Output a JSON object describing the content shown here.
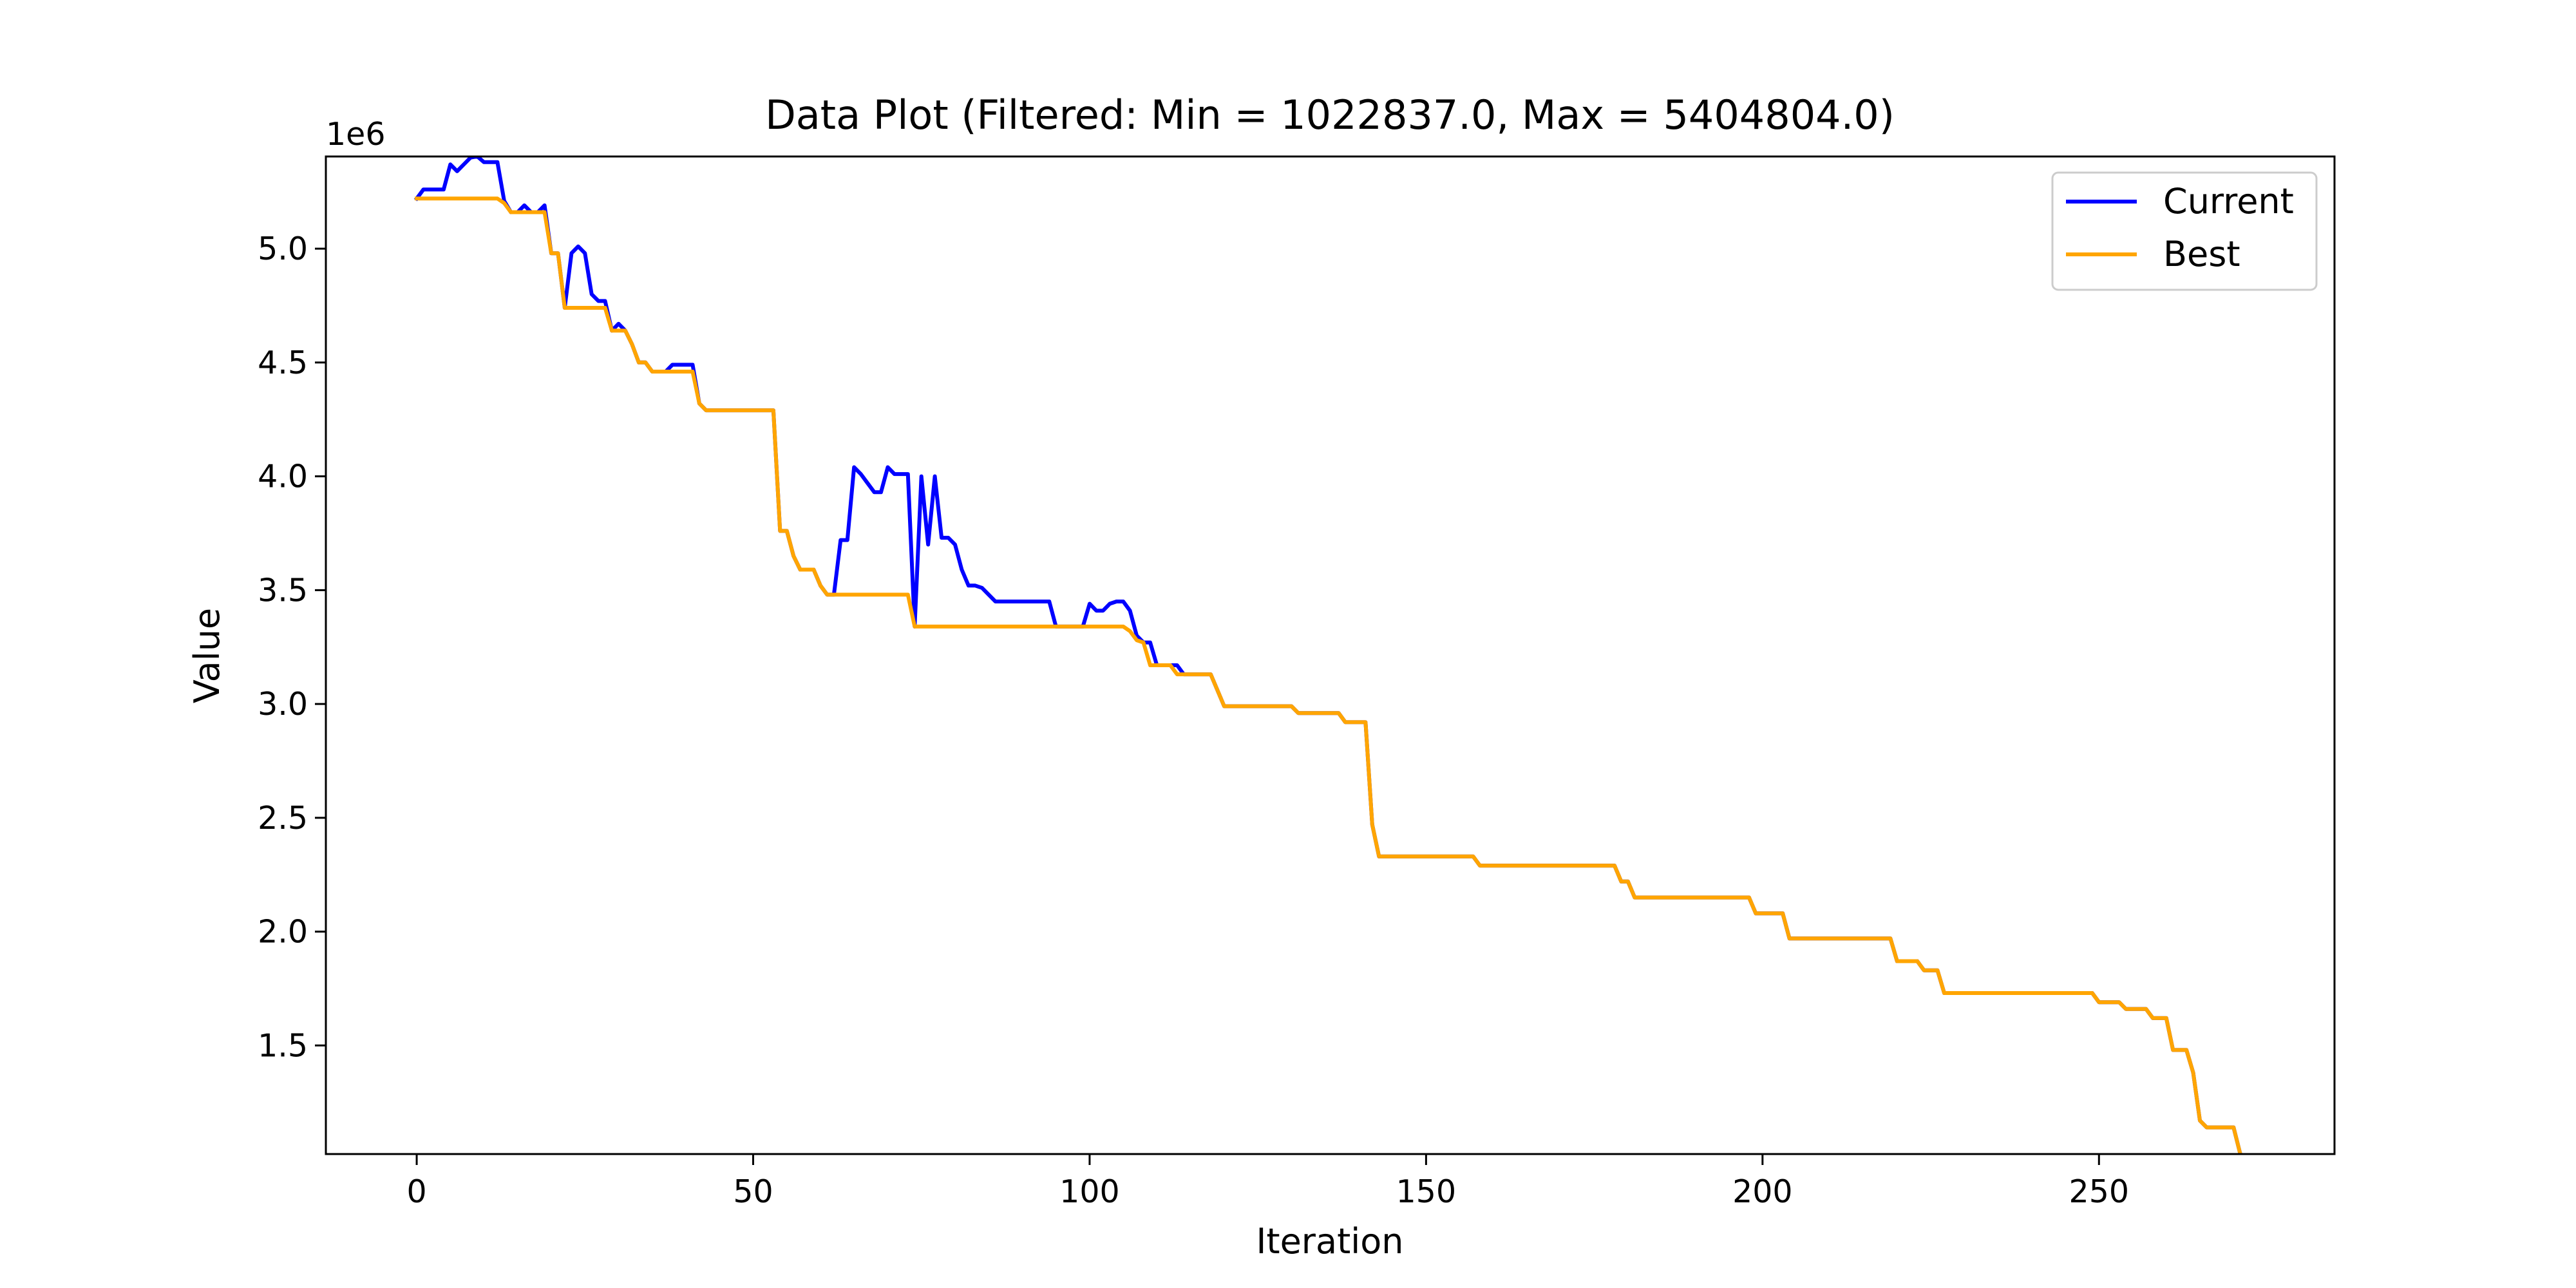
{
  "chart_data": {
    "type": "line",
    "title": "Data Plot (Filtered: Min = 1022837.0, Max = 5404804.0)",
    "xlabel": "Iteration",
    "ylabel": "Value",
    "y_scale_label": "1e6",
    "xlim": [
      -13.5,
      285
    ],
    "ylim": [
      1022837.0,
      5404804.0
    ],
    "x_ticks": [
      0,
      50,
      100,
      150,
      200,
      250
    ],
    "x_tick_labels": [
      "0",
      "50",
      "100",
      "150",
      "200",
      "250"
    ],
    "y_ticks": [
      1500000,
      2000000,
      2500000,
      3000000,
      3500000,
      4000000,
      4500000,
      5000000
    ],
    "y_tick_labels": [
      "1.5",
      "2.0",
      "2.5",
      "3.0",
      "3.5",
      "4.0",
      "4.5",
      "5.0"
    ],
    "grid": false,
    "legend_position": "top-right",
    "series": [
      {
        "name": "Current",
        "color": "#0000ff",
        "points": [
          [
            0,
            5220000
          ],
          [
            1,
            5260000
          ],
          [
            2,
            5260000
          ],
          [
            3,
            5260000
          ],
          [
            4,
            5260000
          ],
          [
            5,
            5370000
          ],
          [
            6,
            5340000
          ],
          [
            7,
            5370000
          ],
          [
            8,
            5400000
          ],
          [
            9,
            5405000
          ],
          [
            10,
            5380000
          ],
          [
            11,
            5380000
          ],
          [
            12,
            5380000
          ],
          [
            13,
            5210000
          ],
          [
            14,
            5160000
          ],
          [
            15,
            5160000
          ],
          [
            16,
            5190000
          ],
          [
            17,
            5160000
          ],
          [
            18,
            5160000
          ],
          [
            19,
            5190000
          ],
          [
            20,
            4980000
          ],
          [
            21,
            4980000
          ],
          [
            22,
            4740000
          ],
          [
            23,
            4980000
          ],
          [
            24,
            5010000
          ],
          [
            25,
            4980000
          ],
          [
            26,
            4800000
          ],
          [
            27,
            4770000
          ],
          [
            28,
            4770000
          ],
          [
            29,
            4640000
          ],
          [
            30,
            4670000
          ],
          [
            31,
            4640000
          ],
          [
            32,
            4580000
          ],
          [
            33,
            4500000
          ],
          [
            34,
            4500000
          ],
          [
            35,
            4460000
          ],
          [
            36,
            4460000
          ],
          [
            37,
            4460000
          ],
          [
            38,
            4490000
          ],
          [
            39,
            4490000
          ],
          [
            40,
            4490000
          ],
          [
            41,
            4490000
          ],
          [
            42,
            4320000
          ],
          [
            43,
            4290000
          ],
          [
            44,
            4290000
          ],
          [
            52,
            4290000
          ],
          [
            53,
            4290000
          ],
          [
            54,
            3760000
          ],
          [
            55,
            3760000
          ],
          [
            56,
            3650000
          ],
          [
            57,
            3590000
          ],
          [
            58,
            3590000
          ],
          [
            59,
            3590000
          ],
          [
            60,
            3520000
          ],
          [
            61,
            3480000
          ],
          [
            62,
            3480000
          ],
          [
            63,
            3720000
          ],
          [
            64,
            3720000
          ],
          [
            65,
            4040000
          ],
          [
            66,
            4010000
          ],
          [
            67,
            3970000
          ],
          [
            68,
            3930000
          ],
          [
            69,
            3930000
          ],
          [
            70,
            4040000
          ],
          [
            71,
            4010000
          ],
          [
            72,
            4010000
          ],
          [
            73,
            4010000
          ],
          [
            74,
            3340000
          ],
          [
            75,
            4000000
          ],
          [
            76,
            3700000
          ],
          [
            77,
            4000000
          ],
          [
            78,
            3730000
          ],
          [
            79,
            3730000
          ],
          [
            80,
            3700000
          ],
          [
            81,
            3590000
          ],
          [
            82,
            3520000
          ],
          [
            83,
            3520000
          ],
          [
            84,
            3510000
          ],
          [
            85,
            3480000
          ],
          [
            86,
            3450000
          ],
          [
            87,
            3450000
          ],
          [
            94,
            3450000
          ],
          [
            95,
            3340000
          ],
          [
            96,
            3340000
          ],
          [
            99,
            3340000
          ],
          [
            100,
            3440000
          ],
          [
            101,
            3410000
          ],
          [
            102,
            3410000
          ],
          [
            103,
            3440000
          ],
          [
            104,
            3450000
          ],
          [
            105,
            3450000
          ],
          [
            106,
            3410000
          ],
          [
            107,
            3300000
          ],
          [
            108,
            3270000
          ],
          [
            109,
            3270000
          ],
          [
            110,
            3170000
          ],
          [
            111,
            3170000
          ],
          [
            112,
            3170000
          ],
          [
            113,
            3170000
          ],
          [
            114,
            3130000
          ],
          [
            118,
            3130000
          ],
          [
            119,
            3060000
          ],
          [
            120,
            2990000
          ],
          [
            130,
            2990000
          ],
          [
            131,
            2960000
          ],
          [
            137,
            2960000
          ],
          [
            138,
            2920000
          ],
          [
            141,
            2920000
          ],
          [
            142,
            2470000
          ],
          [
            143,
            2330000
          ],
          [
            157,
            2330000
          ],
          [
            158,
            2290000
          ],
          [
            178,
            2290000
          ],
          [
            179,
            2220000
          ],
          [
            180,
            2220000
          ],
          [
            181,
            2150000
          ],
          [
            198,
            2150000
          ],
          [
            199,
            2080000
          ],
          [
            203,
            2080000
          ],
          [
            204,
            1970000
          ],
          [
            219,
            1970000
          ],
          [
            220,
            1870000
          ],
          [
            223,
            1870000
          ],
          [
            224,
            1830000
          ],
          [
            226,
            1830000
          ],
          [
            227,
            1730000
          ],
          [
            249,
            1730000
          ],
          [
            250,
            1690000
          ],
          [
            253,
            1690000
          ],
          [
            254,
            1660000
          ],
          [
            257,
            1660000
          ],
          [
            258,
            1620000
          ],
          [
            260,
            1620000
          ],
          [
            261,
            1480000
          ],
          [
            263,
            1480000
          ],
          [
            264,
            1380000
          ],
          [
            265,
            1170000
          ],
          [
            266,
            1140000
          ],
          [
            270,
            1140000
          ],
          [
            271,
            1022837
          ]
        ]
      },
      {
        "name": "Best",
        "color": "#ffa500",
        "points": [
          [
            0,
            5220000
          ],
          [
            12,
            5220000
          ],
          [
            13,
            5200000
          ],
          [
            14,
            5160000
          ],
          [
            19,
            5160000
          ],
          [
            20,
            4980000
          ],
          [
            21,
            4980000
          ],
          [
            22,
            4740000
          ],
          [
            28,
            4740000
          ],
          [
            29,
            4640000
          ],
          [
            31,
            4640000
          ],
          [
            32,
            4580000
          ],
          [
            33,
            4500000
          ],
          [
            34,
            4500000
          ],
          [
            35,
            4460000
          ],
          [
            41,
            4460000
          ],
          [
            42,
            4320000
          ],
          [
            43,
            4290000
          ],
          [
            53,
            4290000
          ],
          [
            54,
            3760000
          ],
          [
            55,
            3760000
          ],
          [
            56,
            3650000
          ],
          [
            57,
            3590000
          ],
          [
            59,
            3590000
          ],
          [
            60,
            3520000
          ],
          [
            61,
            3480000
          ],
          [
            73,
            3480000
          ],
          [
            74,
            3340000
          ],
          [
            105,
            3340000
          ],
          [
            106,
            3320000
          ],
          [
            107,
            3280000
          ],
          [
            108,
            3270000
          ],
          [
            109,
            3170000
          ],
          [
            112,
            3170000
          ],
          [
            113,
            3130000
          ],
          [
            118,
            3130000
          ],
          [
            119,
            3060000
          ],
          [
            120,
            2990000
          ],
          [
            130,
            2990000
          ],
          [
            131,
            2960000
          ],
          [
            137,
            2960000
          ],
          [
            138,
            2920000
          ],
          [
            141,
            2920000
          ],
          [
            142,
            2470000
          ],
          [
            143,
            2330000
          ],
          [
            157,
            2330000
          ],
          [
            158,
            2290000
          ],
          [
            178,
            2290000
          ],
          [
            179,
            2220000
          ],
          [
            180,
            2220000
          ],
          [
            181,
            2150000
          ],
          [
            198,
            2150000
          ],
          [
            199,
            2080000
          ],
          [
            203,
            2080000
          ],
          [
            204,
            1970000
          ],
          [
            219,
            1970000
          ],
          [
            220,
            1870000
          ],
          [
            223,
            1870000
          ],
          [
            224,
            1830000
          ],
          [
            226,
            1830000
          ],
          [
            227,
            1730000
          ],
          [
            249,
            1730000
          ],
          [
            250,
            1690000
          ],
          [
            253,
            1690000
          ],
          [
            254,
            1660000
          ],
          [
            257,
            1660000
          ],
          [
            258,
            1620000
          ],
          [
            260,
            1620000
          ],
          [
            261,
            1480000
          ],
          [
            263,
            1480000
          ],
          [
            264,
            1380000
          ],
          [
            265,
            1170000
          ],
          [
            266,
            1140000
          ],
          [
            270,
            1140000
          ],
          [
            271,
            1022837
          ]
        ]
      }
    ]
  }
}
